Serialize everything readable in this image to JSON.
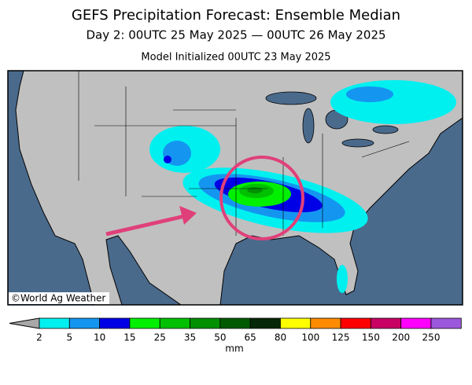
{
  "header": {
    "title": "GEFS Precipitation Forecast: Ensemble Median",
    "subtitle": "Day 2: 00UTC 25 May 2025 — 00UTC 26 May 2025",
    "init": "Model Initialized 00UTC 23 May 2025"
  },
  "map": {
    "watermark": "©World Ag Weather"
  },
  "legend": {
    "ticks": [
      2,
      5,
      10,
      15,
      25,
      35,
      50,
      65,
      80,
      100,
      125,
      150,
      200,
      250
    ],
    "colors": [
      "#00f0f0",
      "#1496f0",
      "#0000e6",
      "#00f000",
      "#00c000",
      "#009000",
      "#005a00",
      "#062806",
      "#ffff00",
      "#ff8c00",
      "#ff0000",
      "#c80064",
      "#ff00ff",
      "#9c58dc"
    ],
    "unit": "mm"
  }
}
